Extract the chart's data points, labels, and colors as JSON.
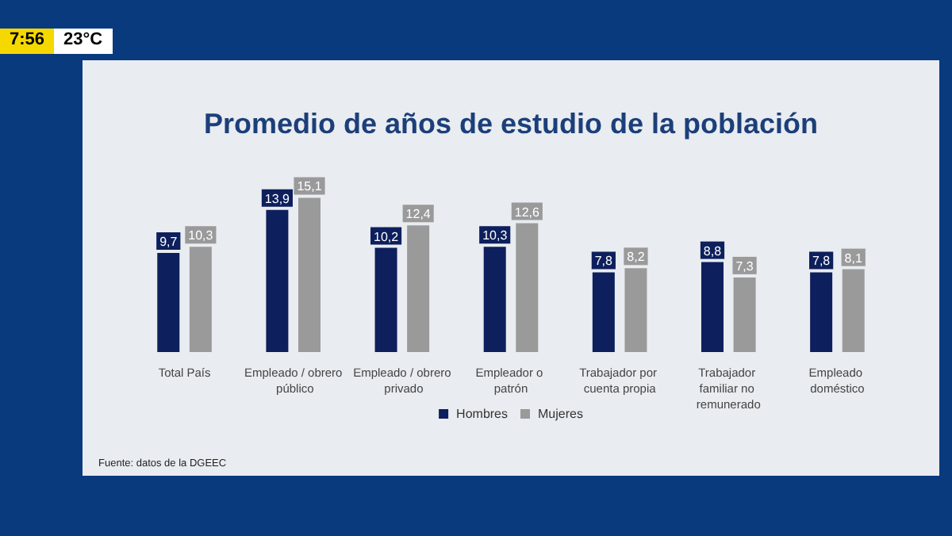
{
  "chart_data": {
    "type": "bar",
    "title": "Promedio de años de estudio de la población",
    "categories": [
      "Total País",
      "Empleado / obrero público",
      "Empleado / obrero privado",
      "Empleador o patrón",
      "Trabajador por cuenta propia",
      "Trabajador familiar no remunerado",
      "Empleado doméstico"
    ],
    "series": [
      {
        "name": "Hombres",
        "color": "#0d1f5c",
        "values": [
          9.7,
          13.9,
          10.2,
          10.3,
          7.8,
          8.8,
          7.8
        ],
        "value_labels": [
          "9,7",
          "13,9",
          "10,2",
          "10,3",
          "7,8",
          "8,8",
          "7,8"
        ]
      },
      {
        "name": "Mujeres",
        "color": "#9a9a9a",
        "values": [
          10.3,
          15.1,
          12.4,
          12.6,
          8.2,
          7.3,
          8.1
        ],
        "value_labels": [
          "10,3",
          "15,1",
          "12,4",
          "12,6",
          "8,2",
          "7,3",
          "8,1"
        ]
      }
    ],
    "legend": "bottom",
    "annotations": [
      "Fuente: datos de la DGEEC",
      "7:56",
      "23°C"
    ]
  }
}
